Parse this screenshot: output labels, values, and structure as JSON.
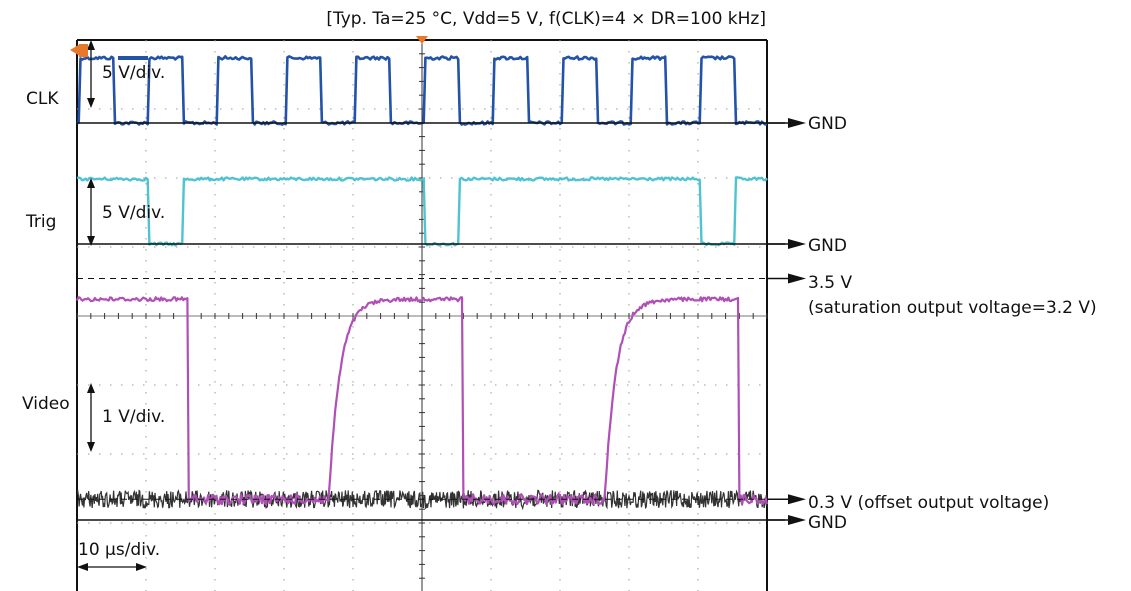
{
  "chart_data": {
    "type": "line",
    "title": "[Typ. Ta=25 °C, Vdd=5 V, f(CLK)=4 × DR=100 kHz]",
    "xlabel": "",
    "ylabel": "",
    "grid": true,
    "time_scale": "10 μs/div.",
    "waveforms": [
      {
        "label": "CLK",
        "scale": "5 V/div.",
        "ground_label": "GND",
        "color": "#2452a8",
        "period_us": 10,
        "high_v": 5,
        "low_v": 0
      },
      {
        "label": "Trig",
        "scale": "5 V/div.",
        "ground_label": "GND",
        "color": "#4fc3cf",
        "high_v": 5,
        "low_v": 0,
        "pulse_low_us": [
          [
            10.5,
            15.5
          ],
          [
            50.5,
            55.5
          ],
          [
            90.5,
            95.5
          ]
        ]
      },
      {
        "label": "Video",
        "scale": "1 V/div.",
        "ground_label": "GND",
        "color": "#b04fb6",
        "noise_color": "#333333",
        "saturation_v": 3.2,
        "offset_v": 0.3,
        "high_intervals_us": [
          [
            0,
            16
          ],
          [
            36.5,
            56
          ],
          [
            76.5,
            96
          ]
        ]
      }
    ],
    "annotations": [
      {
        "id": "sat_level",
        "text": "3.5 V",
        "volts": 3.5
      },
      {
        "id": "sat_note",
        "text": "(saturation output voltage=3.2 V)"
      },
      {
        "id": "offset_note",
        "text": "0.3 V (offset output voltage)",
        "volts": 0.3
      }
    ]
  }
}
